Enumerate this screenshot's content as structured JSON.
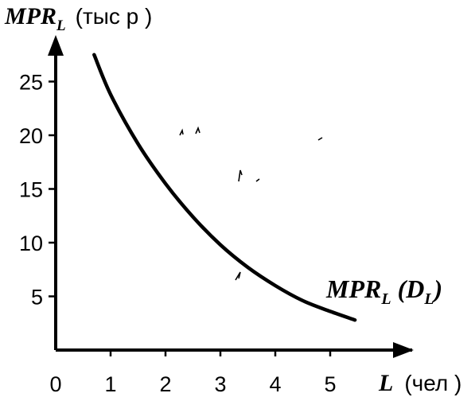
{
  "chart_data": {
    "type": "line",
    "ylabel": {
      "main": "MPR",
      "sub": "L",
      "unit": "(тыс  р )"
    },
    "xlabel": {
      "main": "L",
      "unit": "(чел )"
    },
    "series": [
      {
        "name": {
          "main": "MPR",
          "sub": "L",
          "paren_open": "(",
          "inner": "D",
          "inner_sub": "L",
          "paren_close": ")"
        },
        "x": [
          0.7,
          1.0,
          1.5,
          2.0,
          2.5,
          3.0,
          3.5,
          4.0,
          4.5,
          5.0,
          5.45
        ],
        "y": [
          27.5,
          23.8,
          19.2,
          15.5,
          12.4,
          9.8,
          7.7,
          6.0,
          4.6,
          3.6,
          2.8
        ]
      }
    ],
    "x_ticks": [
      0,
      1,
      2,
      3,
      4,
      5
    ],
    "y_ticks": [
      5,
      10,
      15,
      20,
      25
    ],
    "xlim": [
      0,
      6.5
    ],
    "ylim": [
      0,
      28
    ],
    "grid": false,
    "legend": "none"
  }
}
